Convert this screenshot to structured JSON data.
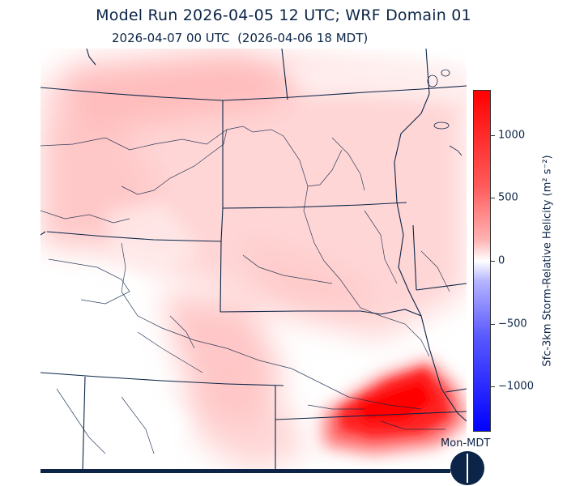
{
  "header": {
    "title": "Model Run 2026-04-05 12 UTC; WRF Domain 01",
    "valid_time": "2026-04-07 00 UTC  (2026-04-06 18 MDT)"
  },
  "colorbar": {
    "label": "Sfc-3km Storm-Relative Helicity (m² s⁻²)",
    "ticks": [
      "1000",
      "500",
      "0",
      "−500",
      "−1000"
    ],
    "tick_values": [
      1000,
      500,
      0,
      -500,
      -1000
    ],
    "range": [
      -1360,
      1360
    ],
    "colors": {
      "max": "#ff0000",
      "zero": "#ffffff",
      "min": "#0000ff"
    }
  },
  "timeline": {
    "day_label": "Mon-MDT",
    "progress": 1.0
  },
  "map": {
    "field": "storm-relative-helicity",
    "colors": {
      "borders": "#0b2447",
      "high": "#ff0000",
      "background": "#ffffff"
    }
  }
}
